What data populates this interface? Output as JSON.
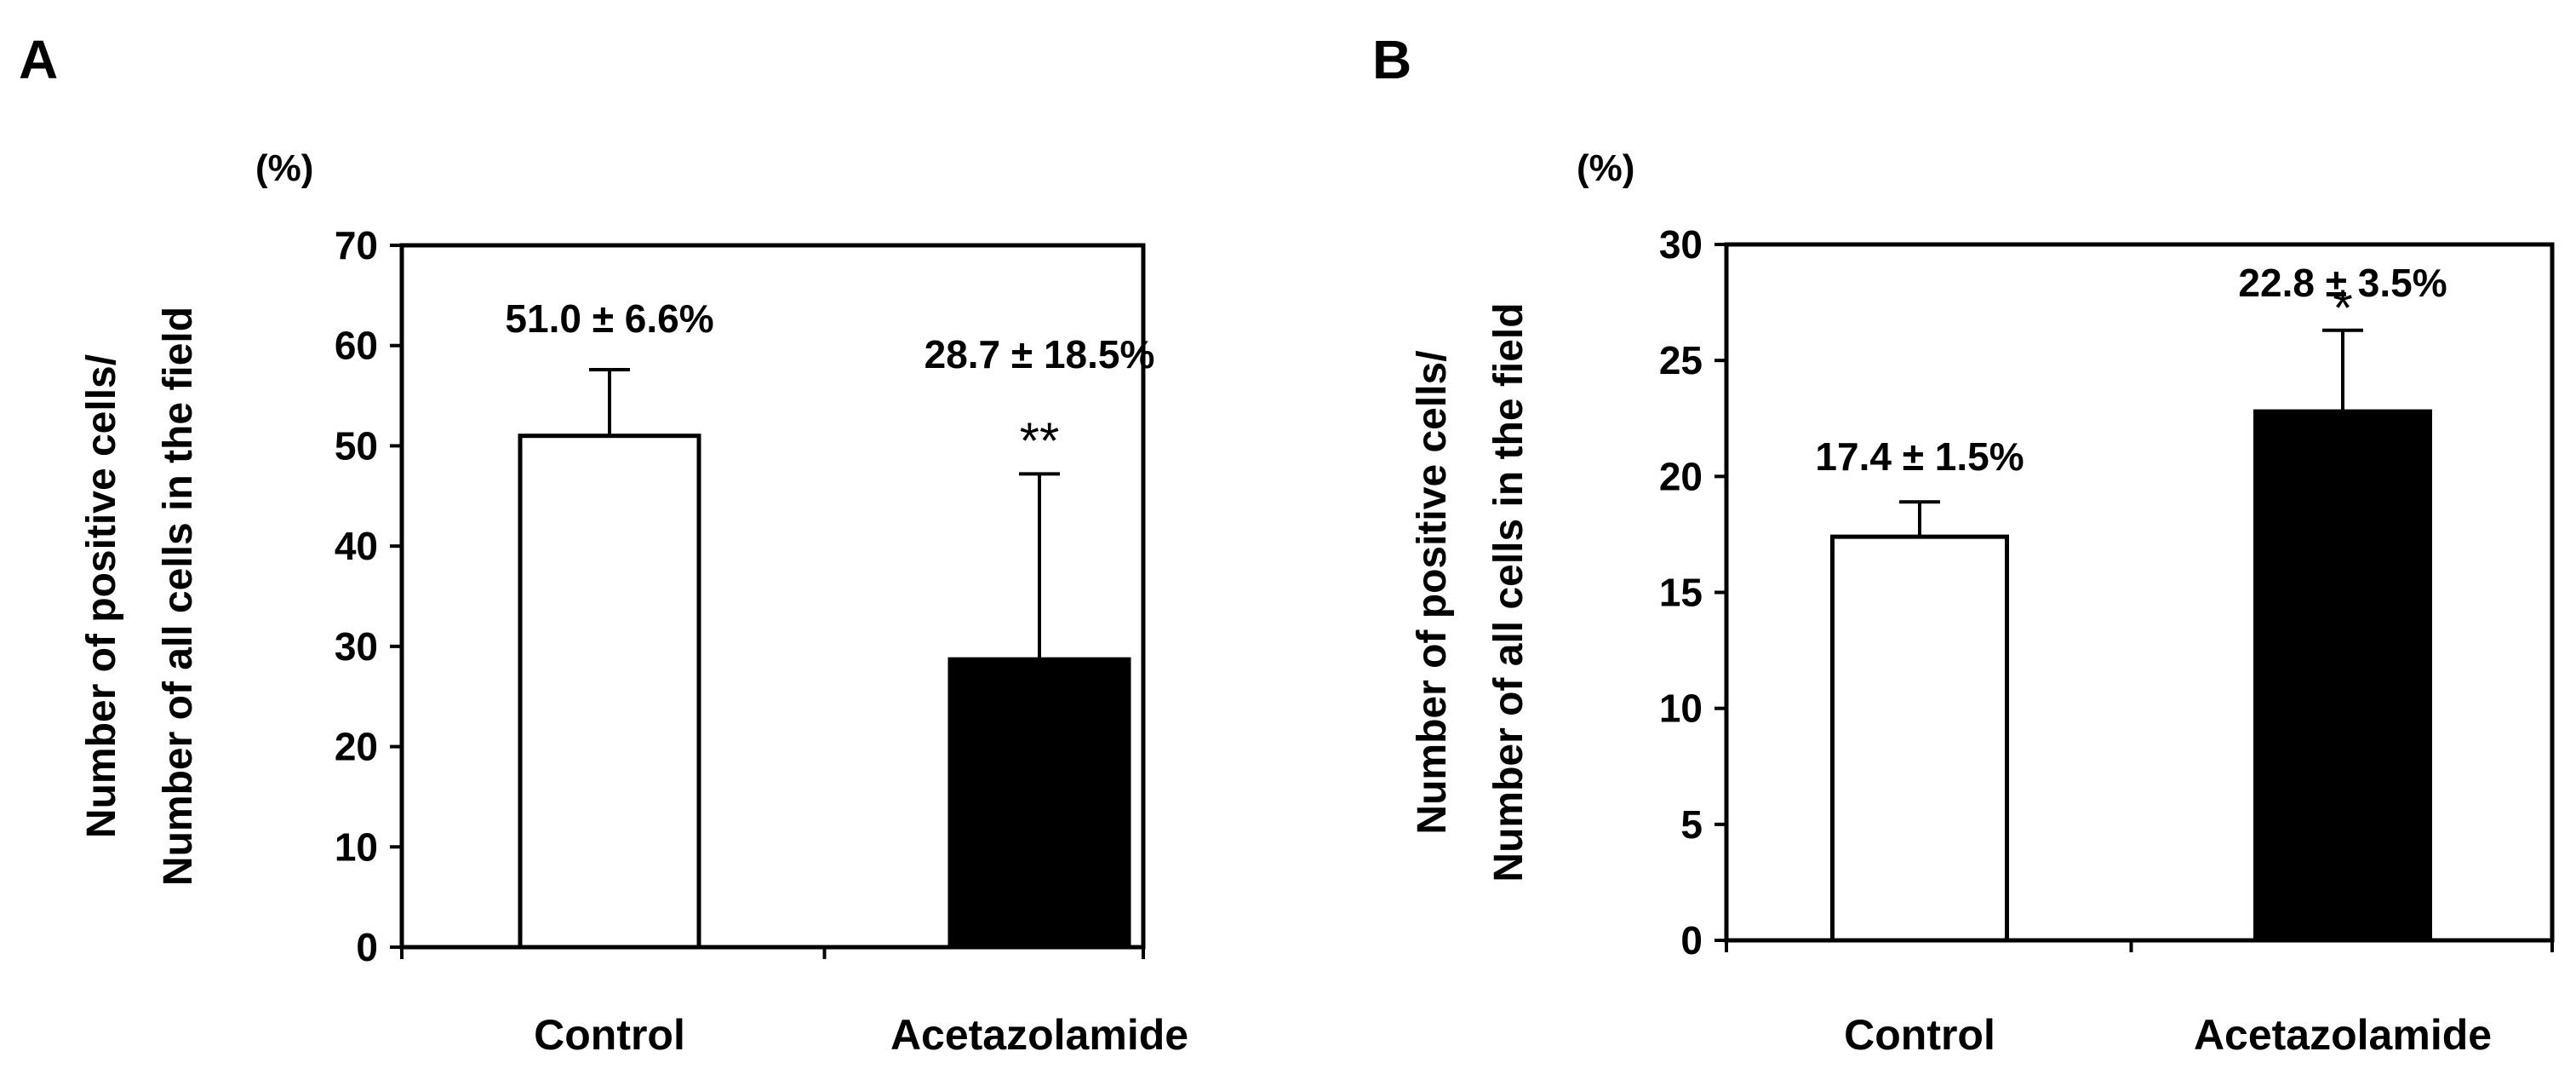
{
  "colors": {
    "axis": "#000000",
    "control_fill": "#ffffff",
    "treatment_fill": "#000000"
  },
  "chart_data": [
    {
      "panel": "A",
      "type": "bar",
      "unit_label": "(%)",
      "ylabel_lines": [
        "Number of positive cells/",
        "Number of all cells in the field"
      ],
      "categories": [
        "Control",
        "Acetazolamide"
      ],
      "values": [
        51.0,
        28.7
      ],
      "errors": [
        6.6,
        18.5
      ],
      "annotations": [
        "51.0 ± 6.6%",
        "28.7 ± 18.5%"
      ],
      "significance": [
        "",
        "**"
      ],
      "bar_fills": [
        "#ffffff",
        "#000000"
      ],
      "ylim": [
        0,
        70
      ],
      "yticks": [
        0,
        10,
        20,
        30,
        40,
        50,
        60,
        70
      ],
      "legend": "none",
      "grid": false
    },
    {
      "panel": "B",
      "type": "bar",
      "unit_label": "(%)",
      "ylabel_lines": [
        "Number of positive cells/",
        "Number of all cells in the field"
      ],
      "categories": [
        "Control",
        "Acetazolamide"
      ],
      "values": [
        17.4,
        22.8
      ],
      "errors": [
        1.5,
        3.5
      ],
      "annotations": [
        "17.4 ± 1.5%",
        "22.8 ± 3.5%"
      ],
      "significance": [
        "",
        "*"
      ],
      "bar_fills": [
        "#ffffff",
        "#000000"
      ],
      "ylim": [
        0,
        30
      ],
      "yticks": [
        0,
        5,
        10,
        15,
        20,
        25,
        30
      ],
      "legend": "none",
      "grid": false
    }
  ]
}
